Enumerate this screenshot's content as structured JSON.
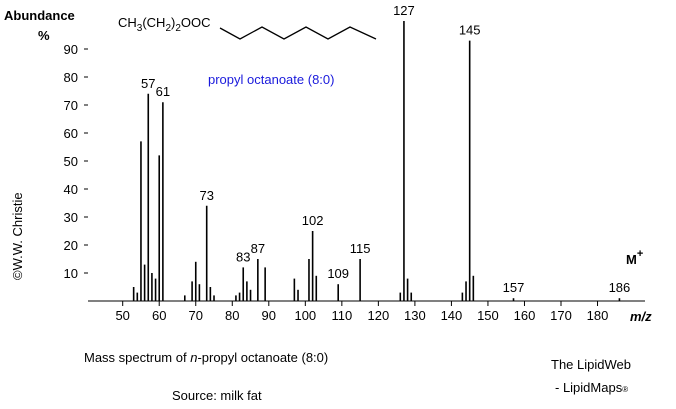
{
  "chart_data": {
    "type": "bar",
    "y_label_top": "Abundance",
    "y_label_unit": "%",
    "x_label": "m/z",
    "formula": [
      "CH",
      "3",
      "(CH",
      "2",
      ")",
      "2",
      "OOC"
    ],
    "compound": "propyl octanoate (8:0)",
    "molecular_ion": [
      "M",
      "+"
    ],
    "copyright": "©W.W. Christie",
    "caption": [
      "Mass spectrum of ",
      "n",
      "-propyl octanoate  (8:0)"
    ],
    "source": "Source: milk fat",
    "brand": [
      "The LipidWeb",
      "- LipidMaps",
      "®"
    ],
    "color": "#000000",
    "x": [
      53,
      54,
      55,
      56,
      57,
      58,
      59,
      60,
      61,
      67,
      69,
      70,
      71,
      73,
      74,
      75,
      81,
      82,
      83,
      84,
      85,
      87,
      89,
      97,
      98,
      101,
      102,
      103,
      109,
      115,
      126,
      127,
      128,
      129,
      143,
      144,
      145,
      146,
      157,
      186
    ],
    "values": [
      5,
      3,
      57,
      13,
      74,
      10,
      8,
      52,
      71,
      2,
      7,
      14,
      6,
      34,
      5,
      2,
      2,
      3,
      12,
      7,
      4,
      15,
      12,
      8,
      4,
      15,
      25,
      9,
      6,
      15,
      3,
      100,
      8,
      3,
      3,
      7,
      93,
      9,
      1,
      1
    ],
    "peak_labels": [
      null,
      null,
      null,
      null,
      "57",
      null,
      null,
      null,
      "61",
      null,
      null,
      null,
      null,
      "73",
      null,
      null,
      null,
      null,
      "83",
      null,
      null,
      "87",
      null,
      null,
      null,
      null,
      "102",
      null,
      "109",
      "115",
      null,
      "127",
      null,
      null,
      null,
      null,
      "145",
      null,
      "157",
      "186"
    ],
    "xlim": [
      40.5,
      193
    ],
    "xticks": [
      50,
      60,
      70,
      80,
      90,
      100,
      110,
      120,
      130,
      140,
      150,
      160,
      170,
      180
    ],
    "ylim": [
      0,
      100
    ],
    "yticks": [
      10,
      20,
      30,
      40,
      50,
      60,
      70,
      80,
      90
    ]
  }
}
